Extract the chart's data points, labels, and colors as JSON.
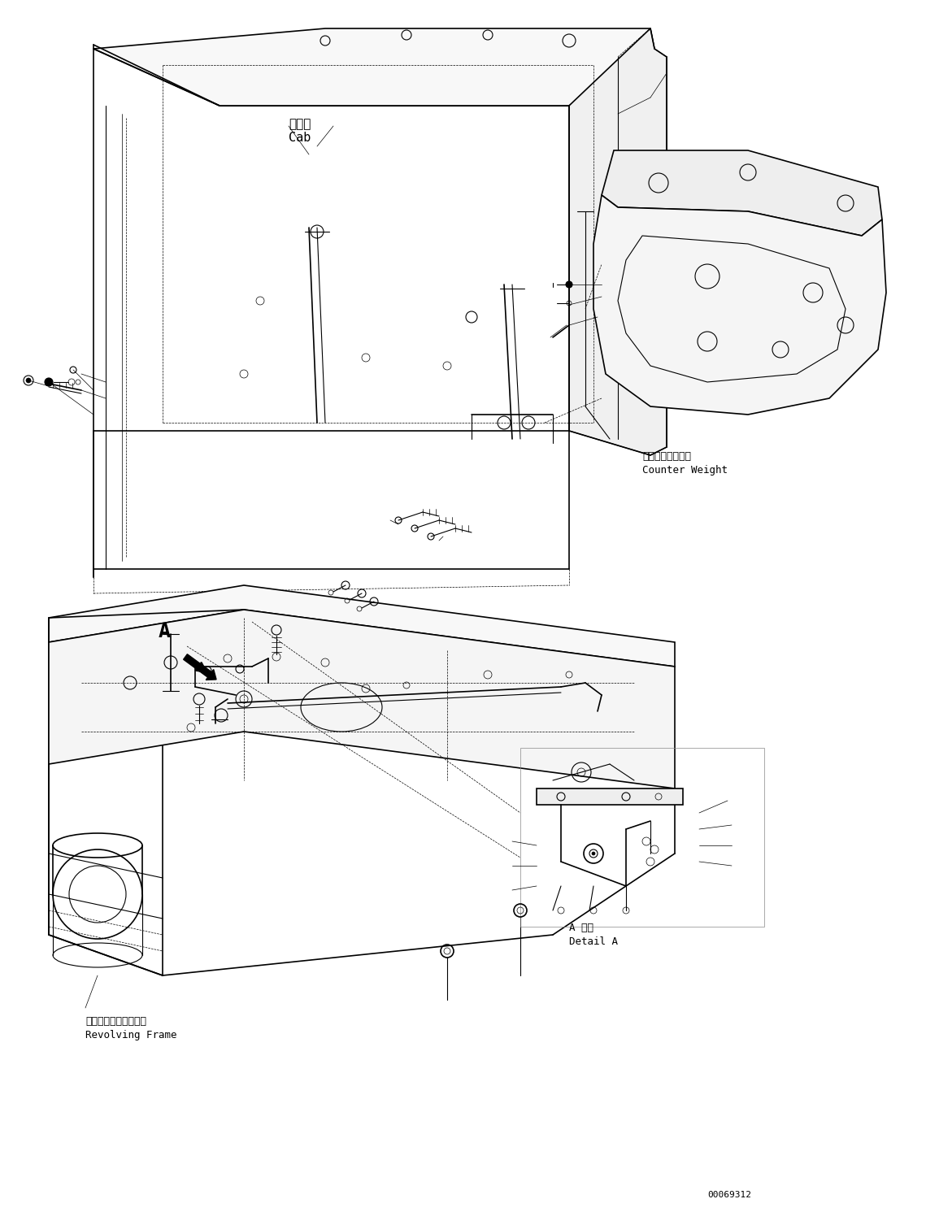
{
  "bg_color": "#ffffff",
  "figsize": [
    11.39,
    14.91
  ],
  "dpi": 100,
  "labels": {
    "cab_jp": "キャブ",
    "cab_en": "Cab",
    "counter_weight_jp": "カウンタウエイト",
    "counter_weight_en": "Counter Weight",
    "revolving_frame_jp": "レボルビングフレーム",
    "revolving_frame_en": "Revolving Frame",
    "detail_a_jp": "A 詳細",
    "detail_a_en": "Detail A",
    "part_number": "00069312",
    "label_A": "A"
  },
  "font_sizes": {
    "label_large": 11,
    "label_medium": 9,
    "label_small": 8,
    "part_number": 8,
    "A_label": 18
  }
}
